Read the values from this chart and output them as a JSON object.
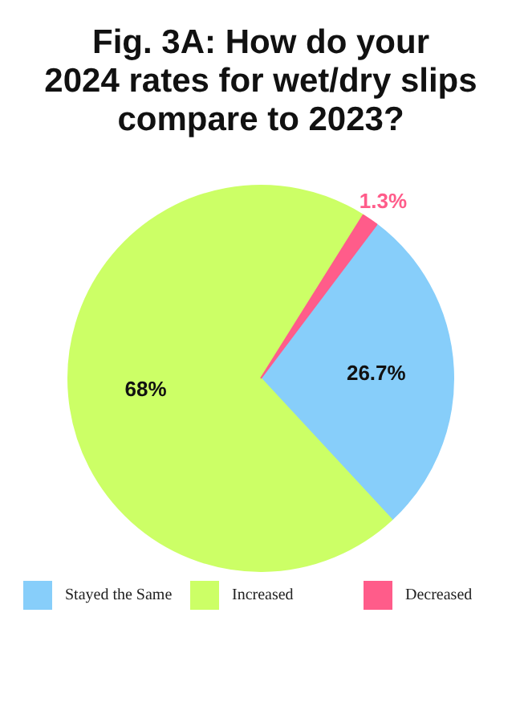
{
  "chart_data": {
    "type": "pie",
    "title": "Fig. 3A: How do your\n2024 rates for wet/dry slips\ncompare to 2023?",
    "categories": [
      "Stayed the Same",
      "Increased",
      "Decreased"
    ],
    "values": [
      26.7,
      68,
      1.3
    ],
    "value_labels": [
      "26.7%",
      "68%",
      "1.3%"
    ],
    "colors": [
      "#87cefa",
      "#ccff66",
      "#ff5c8a"
    ],
    "legend": "bottom"
  }
}
